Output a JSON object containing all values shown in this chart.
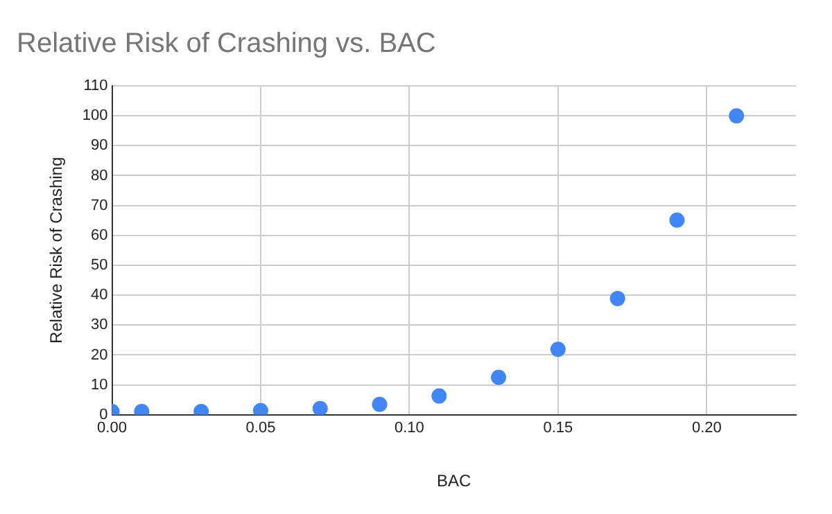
{
  "chart_data": {
    "type": "scatter",
    "title": "Relative Risk of Crashing vs. BAC",
    "xlabel": "BAC",
    "ylabel": "Relative Risk of Crashing",
    "x": [
      0,
      0.01,
      0.03,
      0.05,
      0.07,
      0.09,
      0.11,
      0.13,
      0.15,
      0.17,
      0.19,
      0.21
    ],
    "series": [
      {
        "color": "#4285f4",
        "values": [
          1.1,
          1.1,
          1.1,
          1.4,
          2.1,
          3.5,
          6.3,
          12.5,
          21.9,
          38.9,
          65.1,
          100
        ]
      }
    ],
    "xlim": [
      0,
      0.23
    ],
    "xticks": [
      {
        "value": 0,
        "label": "0.00"
      },
      {
        "value": 0.05,
        "label": "0.05"
      },
      {
        "value": 0.1,
        "label": "0.10"
      },
      {
        "value": 0.15,
        "label": "0.15"
      },
      {
        "value": 0.2,
        "label": "0.20"
      }
    ],
    "ylim": [
      0,
      110
    ],
    "yticks": [
      0,
      10,
      20,
      30,
      40,
      50,
      60,
      70,
      80,
      90,
      100,
      110
    ],
    "grid": true,
    "legend": false,
    "marker": "circle"
  }
}
